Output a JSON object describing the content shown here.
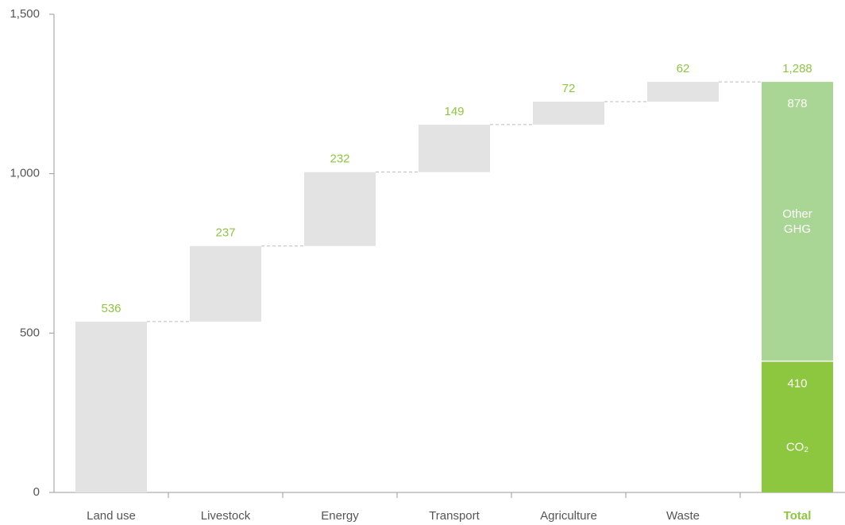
{
  "chart_data": {
    "type": "waterfall",
    "categories": [
      "Land use",
      "Livestock",
      "Energy",
      "Transport",
      "Agriculture",
      "Waste",
      "Total"
    ],
    "values": [
      536,
      237,
      232,
      149,
      72,
      62,
      1288
    ],
    "value_labels": [
      "536",
      "237",
      "232",
      "149",
      "72",
      "62",
      "1,288"
    ],
    "color": "#e3e3e3",
    "label_color": "#8dc63f",
    "stack": [
      {
        "name": "CO₂",
        "value": 410,
        "color": "#8dc63f"
      },
      {
        "name": "Other GHG",
        "value": 878,
        "color": "#a9d694"
      }
    ],
    "ylim": [
      0,
      1500
    ],
    "yticks": [
      0,
      500,
      {
        "value": 1000,
        "label": "1,000"
      },
      {
        "value": 1500,
        "label": "1,500"
      }
    ]
  }
}
